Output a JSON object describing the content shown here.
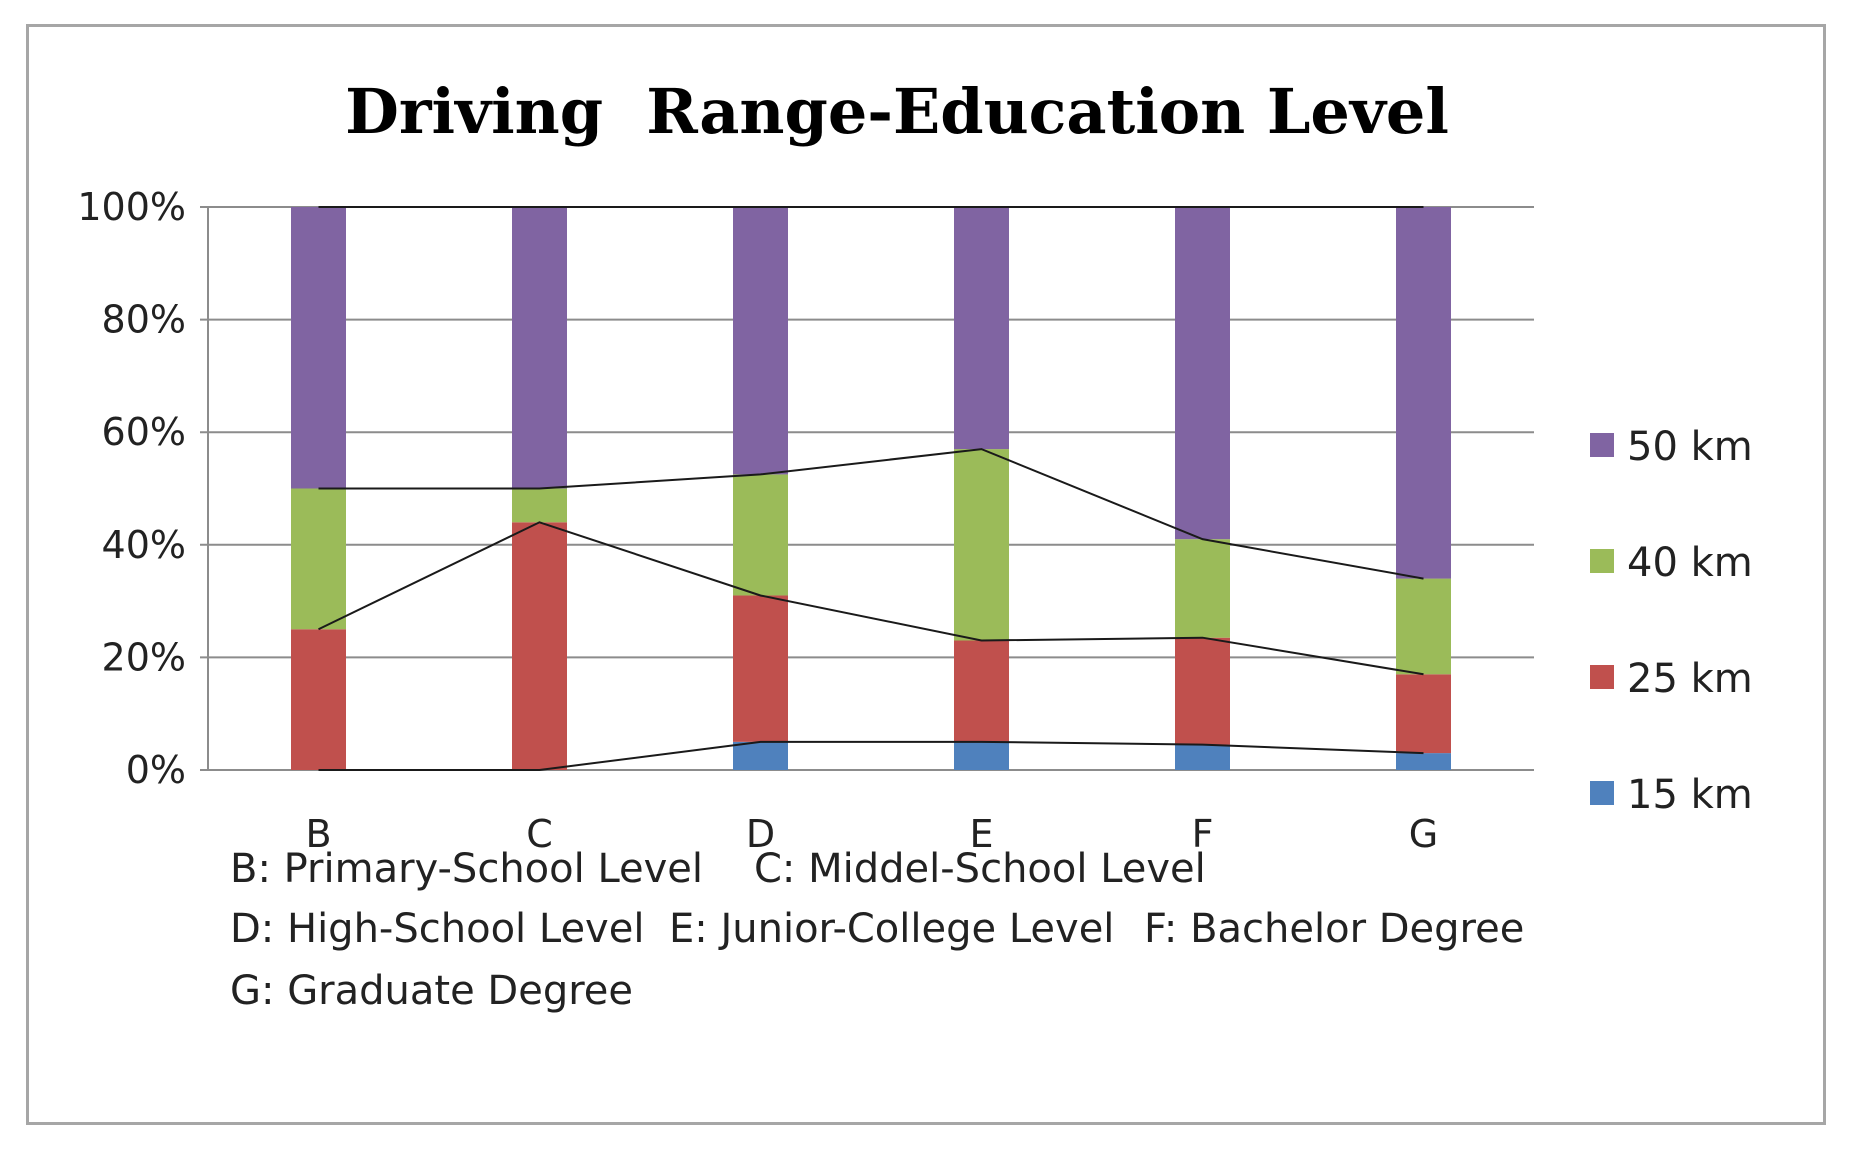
{
  "chart_data": {
    "type": "bar",
    "stacked": true,
    "title": "Driving  Range-Education Level",
    "xlabel": "",
    "ylabel": "",
    "ylim": [
      0,
      100
    ],
    "y_ticks": [
      "0%",
      "20%",
      "40%",
      "60%",
      "80%",
      "100%"
    ],
    "categories": [
      "B",
      "C",
      "D",
      "E",
      "F",
      "G"
    ],
    "series": [
      {
        "name": "15 km",
        "color": "#4f81bd",
        "values": [
          0,
          0,
          5,
          5,
          4.5,
          3
        ]
      },
      {
        "name": "25 km",
        "color": "#c0504d",
        "values": [
          25,
          44,
          26,
          18,
          19,
          14
        ]
      },
      {
        "name": "40 km",
        "color": "#9bbb59",
        "values": [
          25,
          6,
          21.5,
          34,
          17.5,
          17
        ]
      },
      {
        "name": "50 km",
        "color": "#8064a2",
        "values": [
          50,
          50,
          47.5,
          43,
          59,
          66
        ]
      }
    ],
    "series_lines": true,
    "legend": {
      "position": "right",
      "order": [
        "50 km",
        "40 km",
        "25 km",
        "15 km"
      ]
    },
    "grid": true,
    "annotations": [
      [
        "B: Primary-School Level",
        "C: Middel-School Level"
      ],
      [
        "D: High-School Level",
        "E: Junior-College Level",
        "F: Bachelor Degree"
      ],
      [
        "G: Graduate Degree"
      ]
    ]
  }
}
